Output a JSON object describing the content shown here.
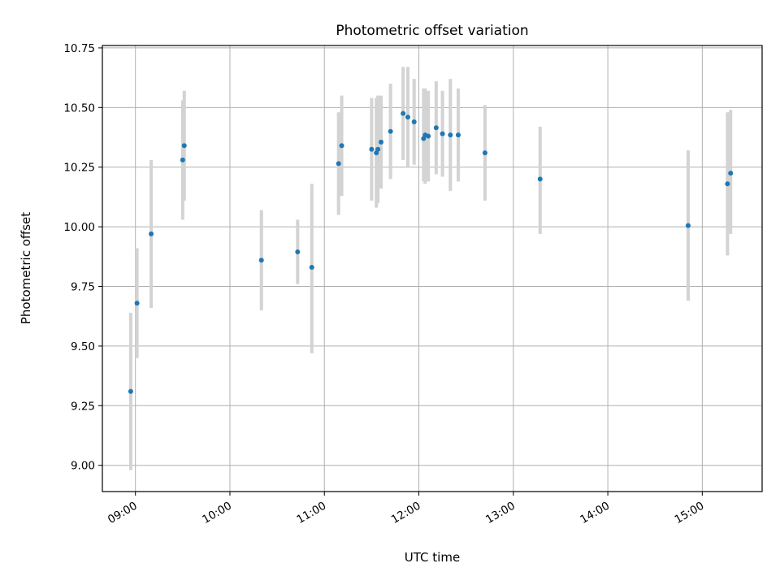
{
  "chart_data": {
    "type": "scatter",
    "title": "Photometric offset variation",
    "xlabel": "UTC time",
    "ylabel": "Photometric offset",
    "grid": true,
    "xlim": [
      "08:39",
      "15:38"
    ],
    "ylim": [
      8.89,
      10.76
    ],
    "x_ticks": [
      "09:00",
      "10:00",
      "11:00",
      "12:00",
      "13:00",
      "14:00",
      "15:00"
    ],
    "y_ticks": [
      9.0,
      9.25,
      9.5,
      9.75,
      10.0,
      10.25,
      10.5,
      10.75
    ],
    "y_tick_labels": [
      "9.00",
      "9.25",
      "9.50",
      "9.75",
      "10.00",
      "10.25",
      "10.50",
      "10.75"
    ],
    "point_color": "#1f77b4",
    "errorbar_color": "#d3d3d3",
    "points": [
      {
        "time": "08:57",
        "y": 9.31,
        "err_low": 8.98,
        "err_high": 9.64
      },
      {
        "time": "09:01",
        "y": 9.68,
        "err_low": 9.45,
        "err_high": 9.91
      },
      {
        "time": "09:10",
        "y": 9.97,
        "err_low": 9.66,
        "err_high": 10.28
      },
      {
        "time": "09:30",
        "y": 10.28,
        "err_low": 10.03,
        "err_high": 10.53
      },
      {
        "time": "09:31",
        "y": 10.34,
        "err_low": 10.11,
        "err_high": 10.57
      },
      {
        "time": "10:20",
        "y": 9.86,
        "err_low": 9.65,
        "err_high": 10.07
      },
      {
        "time": "10:43",
        "y": 9.895,
        "err_low": 9.76,
        "err_high": 10.03
      },
      {
        "time": "10:52",
        "y": 9.83,
        "err_low": 9.47,
        "err_high": 10.18
      },
      {
        "time": "11:09",
        "y": 10.265,
        "err_low": 10.05,
        "err_high": 10.48
      },
      {
        "time": "11:11",
        "y": 10.34,
        "err_low": 10.13,
        "err_high": 10.55
      },
      {
        "time": "11:30",
        "y": 10.325,
        "err_low": 10.11,
        "err_high": 10.54
      },
      {
        "time": "11:33",
        "y": 10.31,
        "err_low": 10.08,
        "err_high": 10.54
      },
      {
        "time": "11:34",
        "y": 10.325,
        "err_low": 10.1,
        "err_high": 10.55
      },
      {
        "time": "11:36",
        "y": 10.355,
        "err_low": 10.16,
        "err_high": 10.55
      },
      {
        "time": "11:42",
        "y": 10.4,
        "err_low": 10.2,
        "err_high": 10.6
      },
      {
        "time": "11:50",
        "y": 10.475,
        "err_low": 10.28,
        "err_high": 10.67
      },
      {
        "time": "11:53",
        "y": 10.46,
        "err_low": 10.25,
        "err_high": 10.67
      },
      {
        "time": "11:57",
        "y": 10.44,
        "err_low": 10.26,
        "err_high": 10.62
      },
      {
        "time": "12:03",
        "y": 10.37,
        "err_low": 10.19,
        "err_high": 10.58
      },
      {
        "time": "12:04",
        "y": 10.385,
        "err_low": 10.18,
        "err_high": 10.58
      },
      {
        "time": "12:06",
        "y": 10.38,
        "err_low": 10.19,
        "err_high": 10.57
      },
      {
        "time": "12:11",
        "y": 10.415,
        "err_low": 10.22,
        "err_high": 10.61
      },
      {
        "time": "12:15",
        "y": 10.39,
        "err_low": 10.21,
        "err_high": 10.57
      },
      {
        "time": "12:20",
        "y": 10.385,
        "err_low": 10.15,
        "err_high": 10.62
      },
      {
        "time": "12:25",
        "y": 10.385,
        "err_low": 10.19,
        "err_high": 10.58
      },
      {
        "time": "12:42",
        "y": 10.31,
        "err_low": 10.11,
        "err_high": 10.51
      },
      {
        "time": "13:17",
        "y": 10.2,
        "err_low": 9.97,
        "err_high": 10.42
      },
      {
        "time": "14:51",
        "y": 10.005,
        "err_low": 9.69,
        "err_high": 10.32
      },
      {
        "time": "15:16",
        "y": 10.18,
        "err_low": 9.88,
        "err_high": 10.48
      },
      {
        "time": "15:18",
        "y": 10.225,
        "err_low": 9.97,
        "err_high": 10.49
      }
    ]
  }
}
